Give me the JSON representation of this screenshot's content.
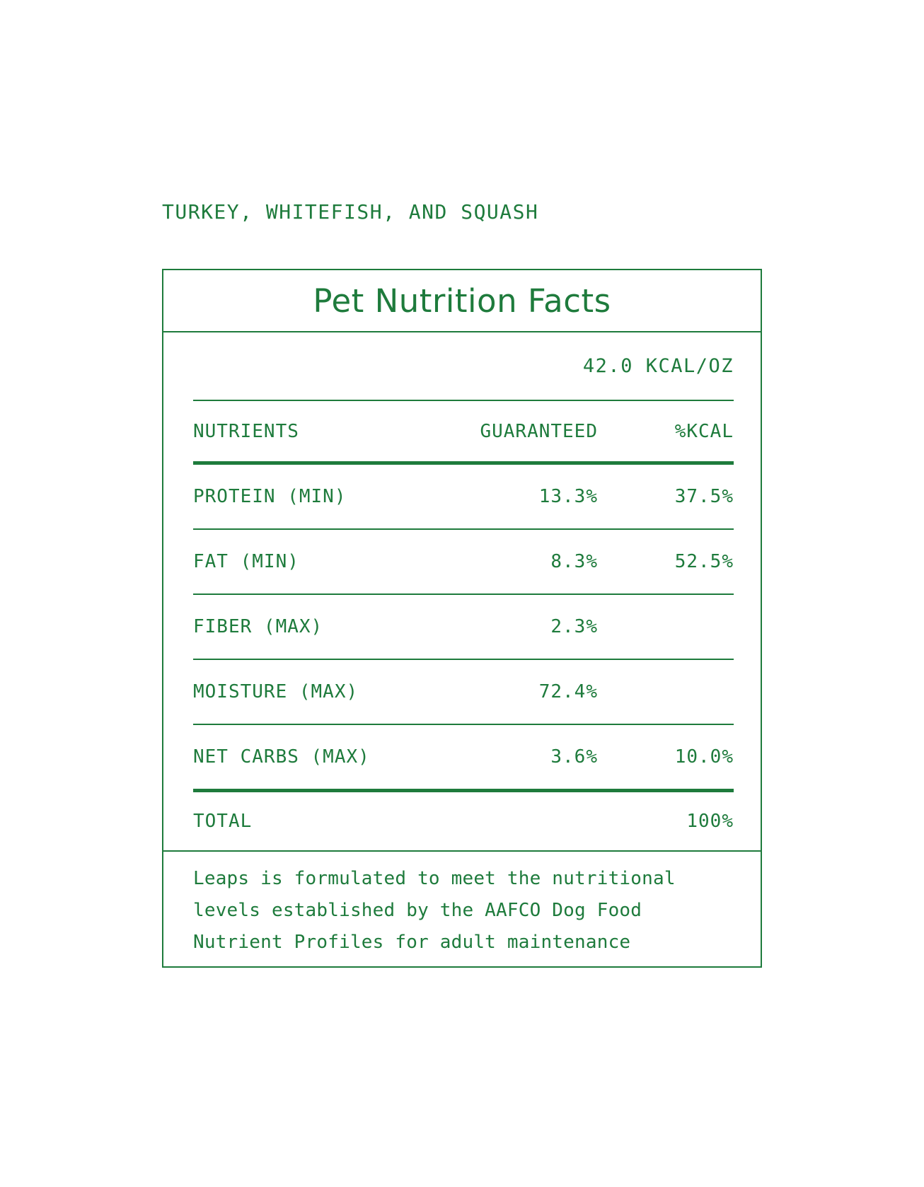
{
  "product_title": "TURKEY, WHITEFISH, AND SQUASH",
  "label": {
    "title": "Pet Nutrition Facts",
    "calorie_content": "42.0 KCAL/OZ",
    "columns": {
      "nutrient": "NUTRIENTS",
      "guaranteed": "GUARANTEED",
      "kcal": "%KCAL"
    },
    "rows": [
      {
        "nutrient": "PROTEIN (MIN)",
        "guaranteed": "13.3%",
        "kcal": "37.5%"
      },
      {
        "nutrient": "FAT (MIN)",
        "guaranteed": "8.3%",
        "kcal": "52.5%"
      },
      {
        "nutrient": "FIBER (MAX)",
        "guaranteed": "2.3%",
        "kcal": ""
      },
      {
        "nutrient": "MOISTURE (MAX)",
        "guaranteed": "72.4%",
        "kcal": ""
      },
      {
        "nutrient": "NET CARBS (MAX)",
        "guaranteed": "3.6%",
        "kcal": "10.0%"
      }
    ],
    "total": {
      "label": "TOTAL",
      "value": "100%"
    },
    "footnote": "Leaps is formulated to meet the nutritional levels established by the AAFCO Dog Food Nutrient Profiles for adult maintenance"
  },
  "colors": {
    "green": "#1E7B3C",
    "background": "#FFFFFF"
  }
}
